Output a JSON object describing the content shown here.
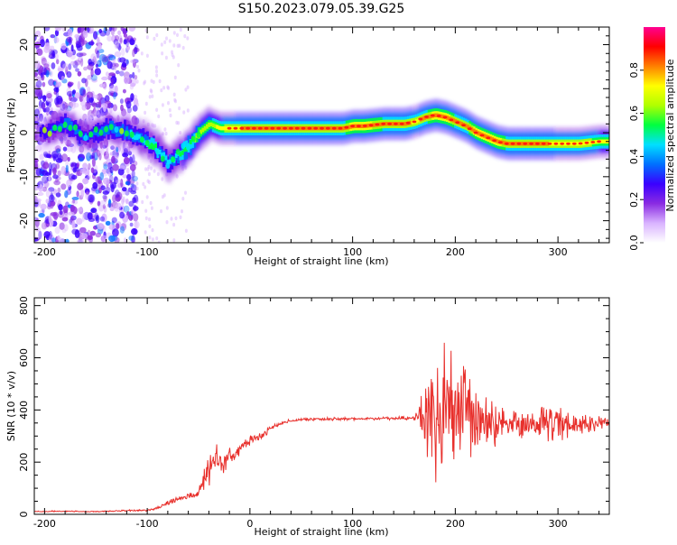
{
  "title": "S150.2023.079.05.39.G25",
  "chart_data": [
    {
      "type": "heatmap",
      "xlabel": "Height of straight line (km)",
      "ylabel": "Frequency (Hz)",
      "xlim": [
        -210,
        350
      ],
      "ylim": [
        -25,
        24
      ],
      "xticks": [
        -200,
        -100,
        0,
        100,
        200,
        300
      ],
      "yticks": [
        -20,
        -10,
        0,
        10,
        20
      ],
      "colorbar": {
        "label": "Normalized spectral amplitude",
        "range": [
          0,
          1
        ],
        "ticks": [
          "0.0",
          "0.2",
          "0.4",
          "0.6",
          "0.8"
        ],
        "tick_values": [
          0,
          0.2,
          0.4,
          0.6,
          0.8
        ],
        "colors": [
          "#ffffff",
          "#d9b3ff",
          "#8a2be2",
          "#3a00ff",
          "#0070ff",
          "#00e0ff",
          "#00ff40",
          "#b0ff00",
          "#ffff00",
          "#ff8000",
          "#ff0000",
          "#ff0090"
        ]
      },
      "ridge": {
        "x": [
          -200,
          -180,
          -160,
          -140,
          -120,
          -110,
          -100,
          -90,
          -80,
          -70,
          -60,
          -50,
          -40,
          -30,
          -20,
          0,
          50,
          90,
          100,
          110,
          130,
          150,
          160,
          170,
          180,
          190,
          200,
          210,
          220,
          230,
          240,
          250,
          260,
          280,
          300,
          320,
          340,
          350
        ],
        "y": [
          0,
          2,
          -1,
          1,
          0,
          -1,
          -2,
          -4,
          -7,
          -5,
          -3,
          0,
          2,
          1,
          1,
          1,
          1,
          1,
          1.5,
          1.5,
          2,
          2,
          2.5,
          3.5,
          4,
          3.5,
          2.5,
          1.5,
          0,
          -1,
          -2,
          -2.5,
          -2.5,
          -2.5,
          -2.5,
          -2.5,
          -2,
          -2
        ],
        "amplitude": [
          0.3,
          0.4,
          0.35,
          0.4,
          0.4,
          0.45,
          0.5,
          0.5,
          0.45,
          0.5,
          0.55,
          0.65,
          0.65,
          0.7,
          0.75,
          0.8,
          0.8,
          0.8,
          0.85,
          0.85,
          0.8,
          0.8,
          0.75,
          0.8,
          0.85,
          0.85,
          0.8,
          0.8,
          0.85,
          0.85,
          0.85,
          0.8,
          0.8,
          0.8,
          0.75,
          0.75,
          0.7,
          0.7
        ]
      }
    },
    {
      "type": "line",
      "xlabel": "Height of straight line (km)",
      "ylabel": "SNR (10 * v/v)",
      "xlim": [
        -210,
        350
      ],
      "ylim": [
        0,
        830
      ],
      "xticks": [
        -200,
        -100,
        0,
        100,
        200,
        300
      ],
      "yticks": [
        0,
        200,
        400,
        600,
        800
      ],
      "line_color": "#e8302c",
      "x": [
        -210,
        -180,
        -150,
        -120,
        -100,
        -90,
        -80,
        -70,
        -60,
        -50,
        -45,
        -40,
        -35,
        -30,
        -25,
        -20,
        -15,
        -10,
        -5,
        0,
        5,
        10,
        15,
        20,
        30,
        40,
        60,
        80,
        100,
        120,
        140,
        160,
        168,
        175,
        180,
        185,
        190,
        195,
        200,
        205,
        210,
        215,
        220,
        225,
        230,
        240,
        250,
        260,
        280,
        300,
        320,
        340,
        350
      ],
      "values": [
        10,
        12,
        10,
        14,
        15,
        25,
        45,
        60,
        70,
        80,
        120,
        170,
        190,
        200,
        210,
        215,
        220,
        250,
        270,
        280,
        290,
        300,
        310,
        330,
        350,
        360,
        365,
        365,
        365,
        368,
        368,
        370,
        370,
        370,
        370,
        370,
        370,
        370,
        370,
        365,
        365,
        360,
        360,
        360,
        355,
        350,
        350,
        350,
        345,
        345,
        345,
        350,
        350
      ],
      "spread": [
        3,
        3,
        3,
        4,
        5,
        10,
        15,
        15,
        15,
        30,
        70,
        100,
        110,
        100,
        70,
        50,
        40,
        35,
        30,
        25,
        25,
        20,
        20,
        15,
        10,
        8,
        8,
        8,
        8,
        8,
        8,
        10,
        150,
        250,
        300,
        350,
        380,
        420,
        380,
        300,
        300,
        280,
        250,
        180,
        150,
        120,
        110,
        100,
        90,
        80,
        60,
        40,
        30
      ]
    }
  ]
}
